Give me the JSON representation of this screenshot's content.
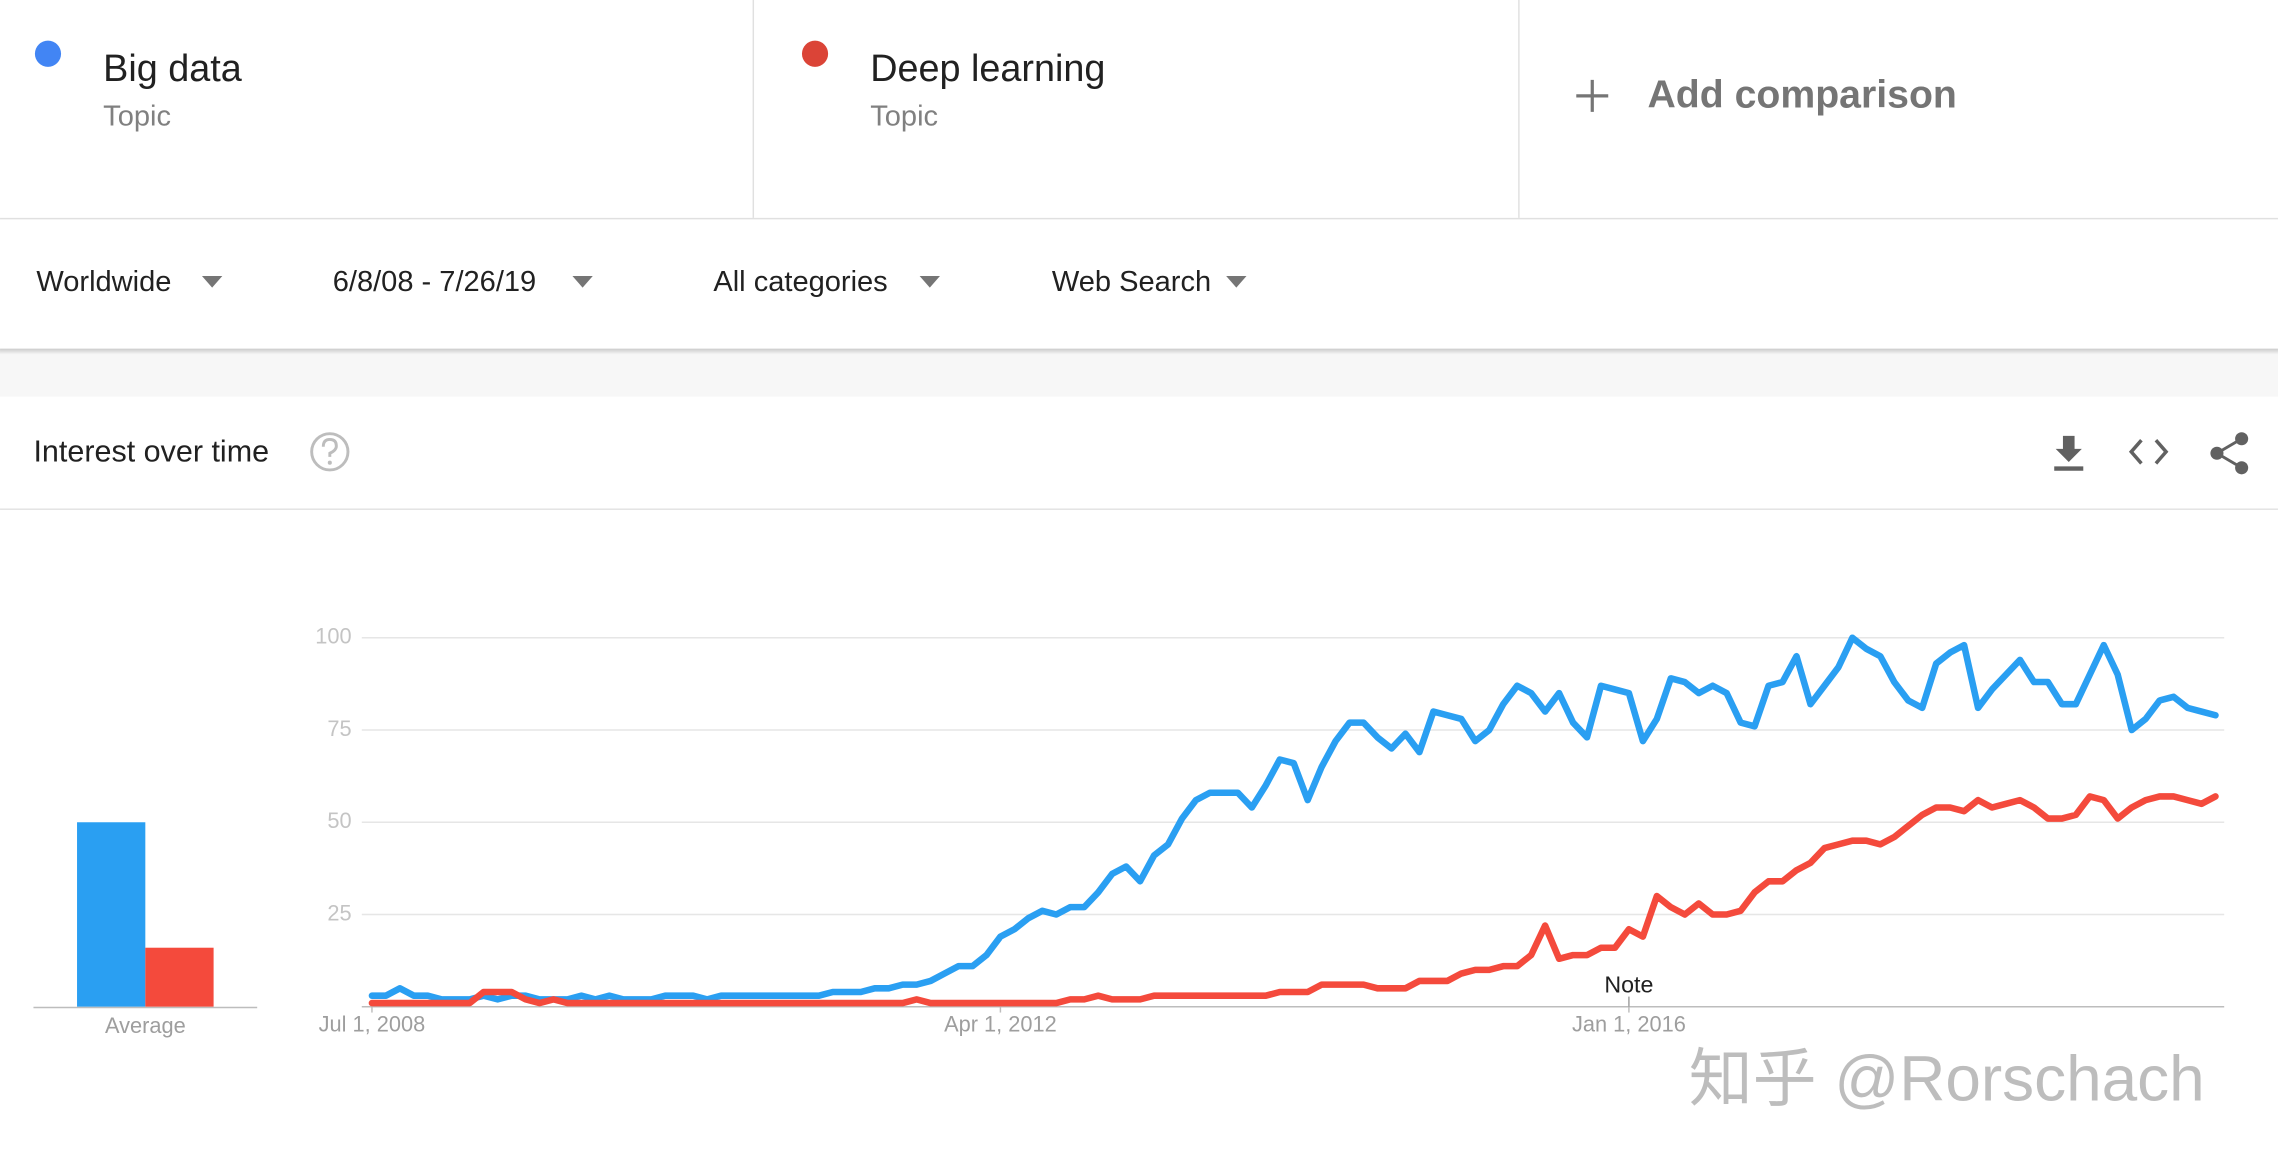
{
  "terms": [
    {
      "subtitle": "Topic",
      "color": "#4285f4"
    },
    {
      "subtitle": "Topic",
      "color": "#db4437"
    }
  ],
  "add_comparison": "Add comparison",
  "filters": [
    "Worldwide",
    "6/8/08 - 7/26/19",
    "All categories",
    "Web Search"
  ],
  "panel": {
    "title": "Interest over time"
  },
  "chart_data": [
    {
      "type": "bar",
      "categories": [
        "Average"
      ],
      "series": [
        {
          "color": "#2a9ff2",
          "values": [
            50
          ]
        },
        {
          "color": "#f44a3c",
          "values": [
            16
          ]
        }
      ],
      "ylim": [
        0,
        100
      ]
    },
    {
      "type": "line",
      "x": [
        "2008-07-01",
        "2008-08-01",
        "2008-09-01",
        "2008-10-01",
        "2008-11-01",
        "2008-12-01",
        "2009-01-01",
        "2009-02-01",
        "2009-03-01",
        "2009-04-01",
        "2009-05-01",
        "2009-06-01",
        "2009-07-01",
        "2009-08-01",
        "2009-09-01",
        "2009-10-01",
        "2009-11-01",
        "2009-12-01",
        "2010-01-01",
        "2010-02-01",
        "2010-03-01",
        "2010-04-01",
        "2010-05-01",
        "2010-06-01",
        "2010-07-01",
        "2010-08-01",
        "2010-09-01",
        "2010-10-01",
        "2010-11-01",
        "2010-12-01",
        "2011-01-01",
        "2011-02-01",
        "2011-03-01",
        "2011-04-01",
        "2011-05-01",
        "2011-06-01",
        "2011-07-01",
        "2011-08-01",
        "2011-09-01",
        "2011-10-01",
        "2011-11-01",
        "2011-12-01",
        "2012-01-01",
        "2012-02-01",
        "2012-03-01",
        "2012-04-01",
        "2012-05-01",
        "2012-06-01",
        "2012-07-01",
        "2012-08-01",
        "2012-09-01",
        "2012-10-01",
        "2012-11-01",
        "2012-12-01",
        "2013-01-01",
        "2013-02-01",
        "2013-03-01",
        "2013-04-01",
        "2013-05-01",
        "2013-06-01",
        "2013-07-01",
        "2013-08-01",
        "2013-09-01",
        "2013-10-01",
        "2013-11-01",
        "2013-12-01",
        "2014-01-01",
        "2014-02-01",
        "2014-03-01",
        "2014-04-01",
        "2014-05-01",
        "2014-06-01",
        "2014-07-01",
        "2014-08-01",
        "2014-09-01",
        "2014-10-01",
        "2014-11-01",
        "2014-12-01",
        "2015-01-01",
        "2015-02-01",
        "2015-03-01",
        "2015-04-01",
        "2015-05-01",
        "2015-06-01",
        "2015-07-01",
        "2015-08-01",
        "2015-09-01",
        "2015-10-01",
        "2015-11-01",
        "2015-12-01",
        "2016-01-01",
        "2016-02-01",
        "2016-03-01",
        "2016-04-01",
        "2016-05-01",
        "2016-06-01",
        "2016-07-01",
        "2016-08-01",
        "2016-09-01",
        "2016-10-01",
        "2016-11-01",
        "2016-12-01",
        "2017-01-01",
        "2017-02-01",
        "2017-03-01",
        "2017-04-01",
        "2017-05-01",
        "2017-06-01",
        "2017-07-01",
        "2017-08-01",
        "2017-09-01",
        "2017-10-01",
        "2017-11-01",
        "2017-12-01",
        "2018-01-01",
        "2018-02-01",
        "2018-03-01",
        "2018-04-01",
        "2018-05-01",
        "2018-06-01",
        "2018-07-01",
        "2018-08-01",
        "2018-09-01",
        "2018-10-01",
        "2018-11-01",
        "2018-12-01",
        "2019-01-01",
        "2019-02-01",
        "2019-03-01",
        "2019-04-01",
        "2019-05-01",
        "2019-06-01",
        "2019-07-01"
      ],
      "series": [
        {
          "name": "Big data",
          "color": "#2a9ff2",
          "values": [
            3,
            3,
            5,
            3,
            3,
            2,
            2,
            2,
            3,
            2,
            3,
            3,
            2,
            2,
            2,
            3,
            2,
            3,
            2,
            2,
            2,
            3,
            3,
            3,
            2,
            3,
            3,
            3,
            3,
            3,
            3,
            3,
            3,
            4,
            4,
            4,
            5,
            5,
            6,
            6,
            7,
            9,
            11,
            11,
            14,
            19,
            21,
            24,
            26,
            25,
            27,
            27,
            31,
            36,
            38,
            34,
            41,
            44,
            51,
            56,
            58,
            58,
            58,
            54,
            60,
            67,
            66,
            56,
            65,
            72,
            77,
            77,
            73,
            70,
            74,
            69,
            80,
            79,
            78,
            72,
            75,
            82,
            87,
            85,
            80,
            85,
            77,
            73,
            87,
            86,
            85,
            72,
            78,
            89,
            88,
            85,
            87,
            85,
            77,
            76,
            87,
            88,
            95,
            82,
            87,
            92,
            100,
            97,
            95,
            88,
            83,
            81,
            93,
            96,
            98,
            81,
            86,
            90,
            94,
            88,
            88,
            82,
            82,
            90,
            98,
            90,
            75,
            78,
            83,
            84,
            81,
            80,
            79
          ]
        },
        {
          "name": "Deep learning",
          "color": "#f44a3c",
          "values": [
            1,
            1,
            1,
            1,
            1,
            1,
            1,
            1,
            4,
            4,
            4,
            2,
            1,
            2,
            1,
            1,
            1,
            1,
            1,
            1,
            1,
            1,
            1,
            1,
            1,
            1,
            1,
            1,
            1,
            1,
            1,
            1,
            1,
            1,
            1,
            1,
            1,
            1,
            1,
            2,
            1,
            1,
            1,
            1,
            1,
            1,
            1,
            1,
            1,
            1,
            2,
            2,
            3,
            2,
            2,
            2,
            3,
            3,
            3,
            3,
            3,
            3,
            3,
            3,
            3,
            4,
            4,
            4,
            6,
            6,
            6,
            6,
            5,
            5,
            5,
            7,
            7,
            7,
            9,
            10,
            10,
            11,
            11,
            14,
            22,
            13,
            14,
            14,
            16,
            16,
            21,
            19,
            30,
            27,
            25,
            28,
            25,
            25,
            26,
            31,
            34,
            34,
            37,
            39,
            43,
            44,
            45,
            45,
            44,
            46,
            49,
            52,
            54,
            54,
            53,
            56,
            54,
            55,
            56,
            54,
            51,
            51,
            52,
            57,
            56,
            51,
            54,
            56,
            57,
            57,
            56,
            55,
            57
          ]
        }
      ],
      "ylim": [
        0,
        100
      ],
      "yticks": [
        25,
        50,
        75,
        100
      ],
      "xticks": [
        {
          "value": "2008-07-01",
          "label": "Jul 1, 2008"
        },
        {
          "value": "2012-04-01",
          "label": "Apr 1, 2012"
        },
        {
          "value": "2016-01-01",
          "label": "Jan 1, 2016"
        }
      ],
      "annotations": [
        {
          "text": "Note",
          "x": "2016-01-01"
        }
      ],
      "grid": true
    }
  ],
  "watermark": "知乎 @Rorschach"
}
